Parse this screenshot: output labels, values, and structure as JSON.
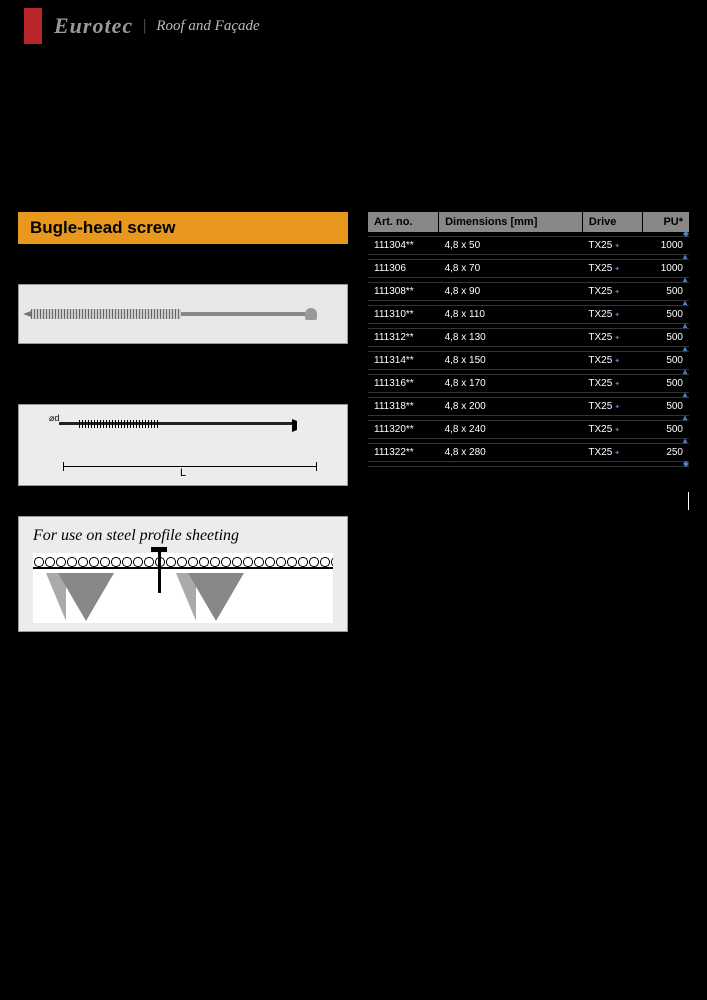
{
  "header": {
    "brand": "Eurotec",
    "separator": "|",
    "section": "Roof and Façade"
  },
  "title": "Bugle-head screw",
  "use_title": "For use on steel profile sheeting",
  "diagram": {
    "d_label": "⌀d",
    "L_label": "L"
  },
  "table": {
    "headers": [
      "Art. no.",
      "Dimensions [mm]",
      "Drive",
      "PU*"
    ],
    "drive_label": "TX25",
    "rows": [
      {
        "art": "111304**",
        "dim": "4,8 x 50",
        "pu": "1000"
      },
      {
        "art": "111306",
        "dim": "4,8 x 70",
        "pu": "1000"
      },
      {
        "art": "111308**",
        "dim": "4,8 x 90",
        "pu": "500"
      },
      {
        "art": "111310**",
        "dim": "4,8 x 110",
        "pu": "500"
      },
      {
        "art": "111312**",
        "dim": "4,8 x 130",
        "pu": "500"
      },
      {
        "art": "111314**",
        "dim": "4,8 x 150",
        "pu": "500"
      },
      {
        "art": "111316**",
        "dim": "4,8 x 170",
        "pu": "500"
      },
      {
        "art": "111318**",
        "dim": "4,8 x 200",
        "pu": "500"
      },
      {
        "art": "111320**",
        "dim": "4,8 x 240",
        "pu": "500"
      },
      {
        "art": "111322**",
        "dim": "4,8 x 280",
        "pu": "250"
      }
    ]
  }
}
